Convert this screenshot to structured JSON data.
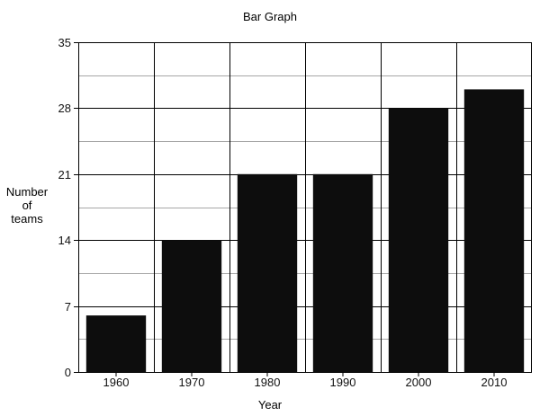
{
  "chart_data": {
    "type": "bar",
    "title": "Bar Graph",
    "xlabel": "Year",
    "ylabel": [
      "Number",
      "of",
      "teams"
    ],
    "categories": [
      "1960",
      "1970",
      "1980",
      "1990",
      "2000",
      "2010"
    ],
    "values": [
      6,
      14,
      21,
      21,
      28,
      30
    ],
    "ylim": [
      0,
      35
    ],
    "yticks": [
      0,
      7,
      14,
      21,
      28,
      35
    ],
    "minor_step": 3.5,
    "grid": true,
    "legend": "none",
    "colors": {
      "bar": "#0d0d0d",
      "major_grid": "#000000",
      "minor_grid": "#a6a6a6",
      "text": "#111111"
    }
  }
}
